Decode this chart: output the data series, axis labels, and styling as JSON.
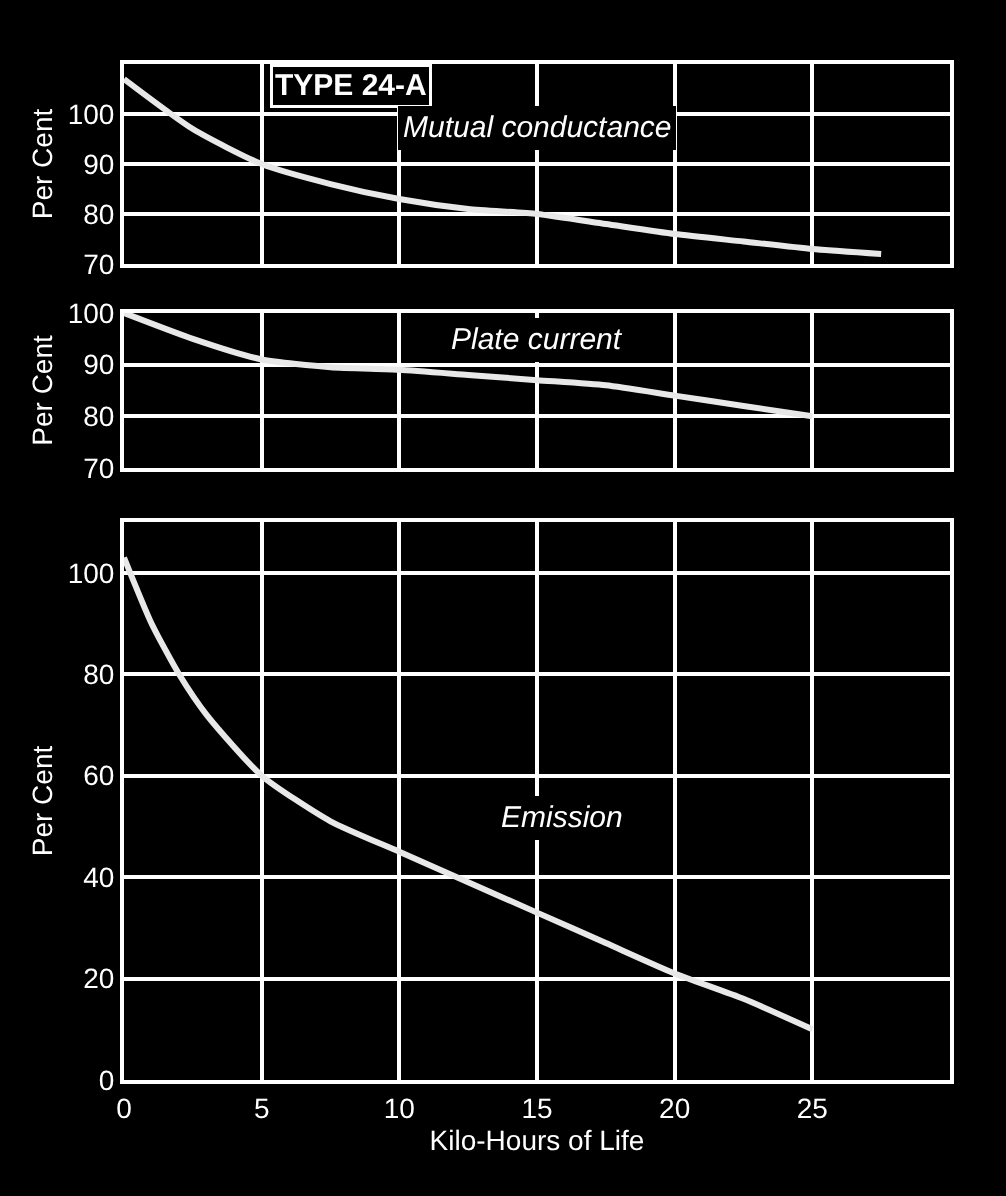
{
  "chart_data": [
    {
      "type": "line",
      "ylabel": "Per Cent",
      "xlim": [
        0,
        30
      ],
      "xticks": [
        0,
        5,
        10,
        15,
        20,
        25
      ],
      "ylim": [
        70,
        110
      ],
      "yticks": [
        70,
        80,
        90,
        100
      ],
      "grid": true,
      "tick_labels": "y",
      "marker": "none",
      "x": [
        0,
        2.5,
        5,
        7.5,
        10,
        12.5,
        15,
        17.5,
        20,
        22.5,
        25,
        27.5
      ],
      "series": [
        {
          "color": "#e8e8e8",
          "values": [
            107,
            97,
            90,
            86,
            83,
            81,
            80,
            78,
            76,
            74.5,
            73,
            72
          ]
        }
      ],
      "annotations": [
        "TYPE 24-A",
        "Mutual conductance"
      ]
    },
    {
      "type": "line",
      "ylabel": "Per Cent",
      "xlim": [
        0,
        30
      ],
      "xticks": [
        0,
        5,
        10,
        15,
        20,
        25
      ],
      "ylim": [
        70,
        100
      ],
      "yticks": [
        70,
        80,
        90,
        100
      ],
      "grid": true,
      "tick_labels": "y",
      "marker": "none",
      "x": [
        0,
        2.5,
        5,
        7.5,
        10,
        12.5,
        15,
        17.5,
        20,
        22.5,
        25
      ],
      "series": [
        {
          "color": "#e8e8e8",
          "values": [
            100,
            95,
            91,
            89.5,
            89,
            88,
            87,
            86,
            84,
            82,
            80
          ]
        }
      ],
      "annotations": [
        "Plate current"
      ]
    },
    {
      "type": "line",
      "ylabel": "Per Cent",
      "xlabel": "Kilo-Hours of Life",
      "xlim": [
        0,
        30
      ],
      "xticks": [
        0,
        5,
        10,
        15,
        20,
        25
      ],
      "ylim": [
        0,
        110
      ],
      "yticks": [
        0,
        20,
        40,
        60,
        80,
        100
      ],
      "grid": true,
      "marker": "none",
      "x": [
        0,
        1,
        2,
        3,
        5,
        7.5,
        10,
        12.5,
        15,
        17.5,
        20,
        22.5,
        25
      ],
      "series": [
        {
          "color": "#e8e8e8",
          "values": [
            103,
            90,
            80,
            72,
            60,
            51,
            45,
            39,
            33,
            27,
            21,
            16,
            10
          ]
        }
      ],
      "annotations": [
        "Emission"
      ]
    }
  ]
}
